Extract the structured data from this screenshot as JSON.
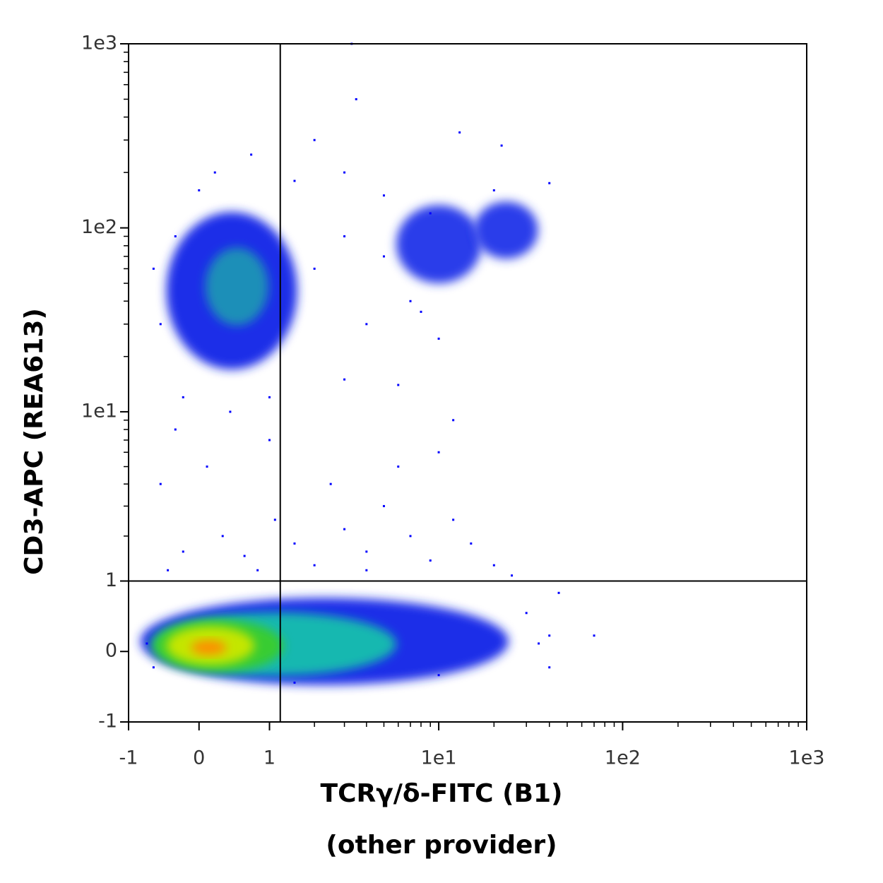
{
  "chart_data": {
    "type": "scatter",
    "xlabel": "TCRγ/δ-FITC (B1)",
    "xlabel2": "(other provider)",
    "ylabel": "CD3-APC (REA613)",
    "xscale": "asinh",
    "yscale": "asinh",
    "xlim": [
      -1,
      1000
    ],
    "ylim": [
      -1,
      1000
    ],
    "xticks": [
      -1,
      0,
      1,
      {
        "value": 10,
        "label": "1e1"
      },
      {
        "value": 100,
        "label": "1e2"
      },
      {
        "value": 1000,
        "label": "1e3"
      }
    ],
    "yticks": [
      -1,
      0,
      1,
      {
        "value": 10,
        "label": "1e1"
      },
      {
        "value": 100,
        "label": "1e2"
      },
      {
        "value": 1000,
        "label": "1e3"
      }
    ],
    "xminorticks": [
      2,
      3,
      4,
      5,
      6,
      7,
      8,
      9,
      20,
      30,
      40,
      50,
      60,
      70,
      80,
      90,
      200,
      300,
      400,
      500,
      600,
      700,
      800,
      900
    ],
    "yminorticks": [
      2,
      3,
      4,
      5,
      6,
      7,
      8,
      9,
      20,
      30,
      40,
      50,
      60,
      70,
      80,
      90,
      200,
      300,
      400,
      500,
      600,
      700,
      800,
      900
    ],
    "gates": {
      "x": 1.2,
      "y": 1
    },
    "blobs": [
      {
        "x": [
          -0.8,
          24
        ],
        "y": [
          -0.43,
          0.72
        ],
        "color": "#1a2ee8"
      },
      {
        "x": [
          -0.42,
          1.56
        ],
        "y": [
          17,
          122
        ],
        "color": "#1a2ee8"
      },
      {
        "x": [
          5.85,
          17.1
        ],
        "y": [
          50,
          133
        ],
        "color": "#2a3cea"
      },
      {
        "x": [
          15.6,
          34.7
        ],
        "y": [
          68,
          139
        ],
        "color": "#2a3cea"
      },
      {
        "x": [
          0.08,
          0.98
        ],
        "y": [
          29.5,
          78
        ],
        "color": "#1c8fb8"
      },
      {
        "x": [
          -0.62,
          5.85
        ],
        "y": [
          -0.31,
          0.51
        ],
        "color": "#12b8b0"
      },
      {
        "x": [
          -0.62,
          1.26
        ],
        "y": [
          -0.26,
          0.41
        ],
        "color": "#38cc30"
      },
      {
        "x": [
          -0.42,
          0.75
        ],
        "y": [
          -0.17,
          0.32
        ],
        "color": "#c4e600"
      },
      {
        "x": [
          -0.1,
          0.35
        ],
        "y": [
          -0.04,
          0.14
        ],
        "color": "#ff8c00"
      }
    ],
    "points": {
      "color": "#0000ff",
      "x": [
        0.3,
        0.6,
        1.1,
        1.5,
        2,
        3,
        4,
        5,
        7,
        9,
        12,
        15,
        20,
        -0.2,
        -0.4,
        2.5,
        6,
        10,
        -0.5,
        0.1,
        1,
        0.8,
        4,
        25,
        30,
        45,
        70,
        35,
        0.2,
        0.7,
        2,
        3.5,
        3.3,
        13,
        22,
        3,
        5,
        1.5,
        0,
        -0.3,
        -0.6,
        -0.5,
        -0.2,
        0.4,
        1,
        3,
        6,
        10,
        4,
        7,
        12,
        -0.3,
        2,
        3,
        5,
        9,
        8,
        20,
        40,
        -0.7,
        -0.6,
        40,
        40,
        10,
        1.5
      ],
      "y": [
        2,
        1.5,
        2.5,
        1.8,
        1.3,
        2.2,
        1.6,
        3,
        2,
        1.4,
        2.5,
        1.8,
        1.3,
        1.6,
        1.2,
        4,
        5,
        6,
        4,
        5,
        7,
        1.2,
        1.2,
        1.1,
        0.5,
        0.8,
        0.2,
        0.1,
        200,
        250,
        300,
        500,
        1000,
        330,
        280,
        200,
        150,
        180,
        160,
        90,
        60,
        30,
        12,
        10,
        12,
        15,
        14,
        25,
        30,
        40,
        9,
        8,
        60,
        90,
        70,
        120,
        35,
        160,
        175,
        0.1,
        -0.2,
        0.2,
        -0.2,
        -0.3,
        -0.4
      ]
    }
  }
}
